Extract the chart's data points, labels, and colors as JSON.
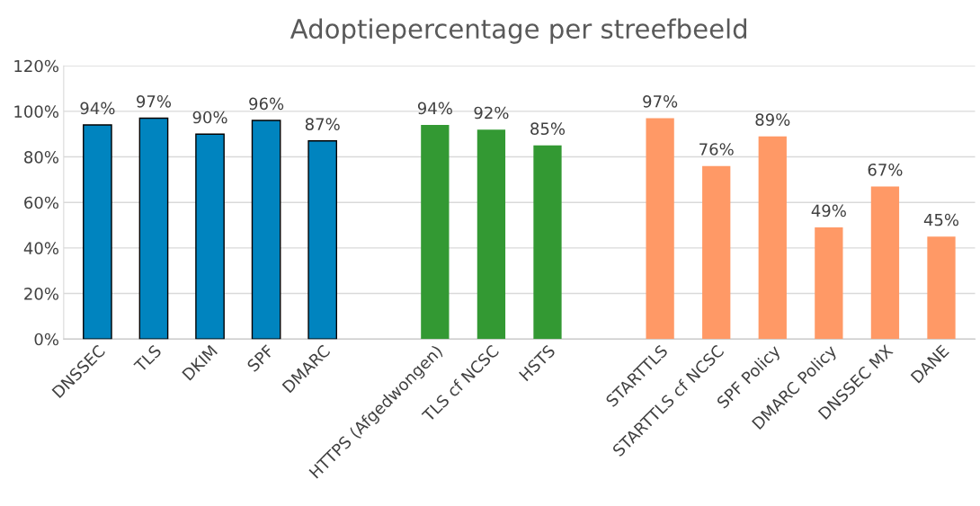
{
  "chart_data": {
    "type": "bar",
    "title": "Adoptiepercentage per streefbeeld",
    "categories": [
      "DNSSEC",
      "TLS",
      "DKIM",
      "SPF",
      "DMARC",
      null,
      "HTTPS (Afgedwongen)",
      "TLS cf NCSC",
      "HSTS",
      null,
      "STARTTLS",
      "STARTTLS cf NCSC",
      "SPF Policy",
      "DMARC Policy",
      "DNSSEC MX",
      "DANE"
    ],
    "series": [
      {
        "color": "#0084bf",
        "values": [
          94,
          97,
          90,
          96,
          87,
          null,
          null,
          null,
          null,
          null,
          null,
          null,
          null,
          null,
          null,
          null
        ],
        "value_labels": [
          "94%",
          "97%",
          "90%",
          "96%",
          "87%",
          null,
          null,
          null,
          null,
          null,
          null,
          null,
          null,
          null,
          null,
          null
        ]
      },
      {
        "color": "#339933",
        "values": [
          null,
          null,
          null,
          null,
          null,
          null,
          94,
          92,
          85,
          null,
          null,
          null,
          null,
          null,
          null,
          null
        ],
        "value_labels": [
          null,
          null,
          null,
          null,
          null,
          null,
          "94%",
          "92%",
          "85%",
          null,
          null,
          null,
          null,
          null,
          null,
          null
        ]
      },
      {
        "color": "#ff9966",
        "values": [
          null,
          null,
          null,
          null,
          null,
          null,
          null,
          null,
          null,
          null,
          97,
          76,
          89,
          49,
          67,
          45
        ],
        "value_labels": [
          null,
          null,
          null,
          null,
          null,
          null,
          null,
          null,
          null,
          null,
          "97%",
          "76%",
          "89%",
          "49%",
          "67%",
          "45%"
        ]
      }
    ],
    "ylim": [
      0,
      120
    ],
    "yticks": [
      {
        "value": 0,
        "label": "0%"
      },
      {
        "value": 20,
        "label": "20%"
      },
      {
        "value": 40,
        "label": "40%"
      },
      {
        "value": 60,
        "label": "60%"
      },
      {
        "value": 80,
        "label": "80%"
      },
      {
        "value": 100,
        "label": "100%"
      },
      {
        "value": 120,
        "label": "120%"
      }
    ],
    "grid": "y"
  }
}
